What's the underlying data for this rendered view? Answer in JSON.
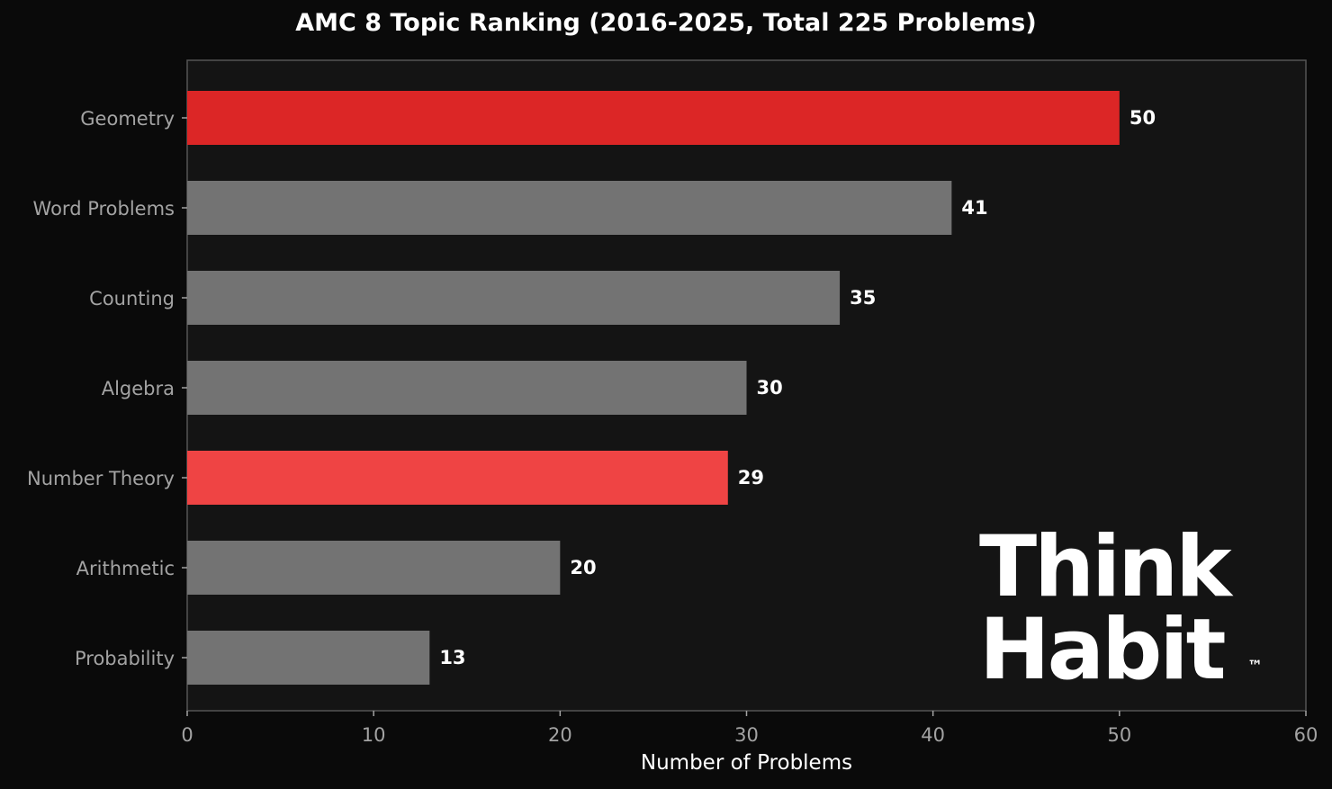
{
  "chart_data": {
    "type": "bar",
    "orientation": "horizontal",
    "title": "AMC 8 Topic Ranking (2016-2025, Total 225 Problems)",
    "xlabel": "Number of Problems",
    "ylabel": "",
    "xlim": [
      0,
      60
    ],
    "xticks": [
      0,
      10,
      20,
      30,
      40,
      50,
      60
    ],
    "categories": [
      "Geometry",
      "Word Problems",
      "Counting",
      "Algebra",
      "Number Theory",
      "Arithmetic",
      "Probability"
    ],
    "values": [
      50,
      41,
      35,
      30,
      29,
      20,
      13
    ],
    "bar_colors": [
      "#dc2626",
      "#737373",
      "#737373",
      "#737373",
      "#ef4444",
      "#737373",
      "#737373"
    ],
    "grid": false,
    "legend": "none"
  },
  "colors": {
    "page_background": "#0a0a0a",
    "plot_background": "#141414",
    "axis_spine": "#555555",
    "tick_label": "#a3a3a3",
    "value_label": "#ffffff",
    "title": "#ffffff"
  },
  "watermark": {
    "line1": "Think",
    "line2": "Habit",
    "mark": "™"
  }
}
